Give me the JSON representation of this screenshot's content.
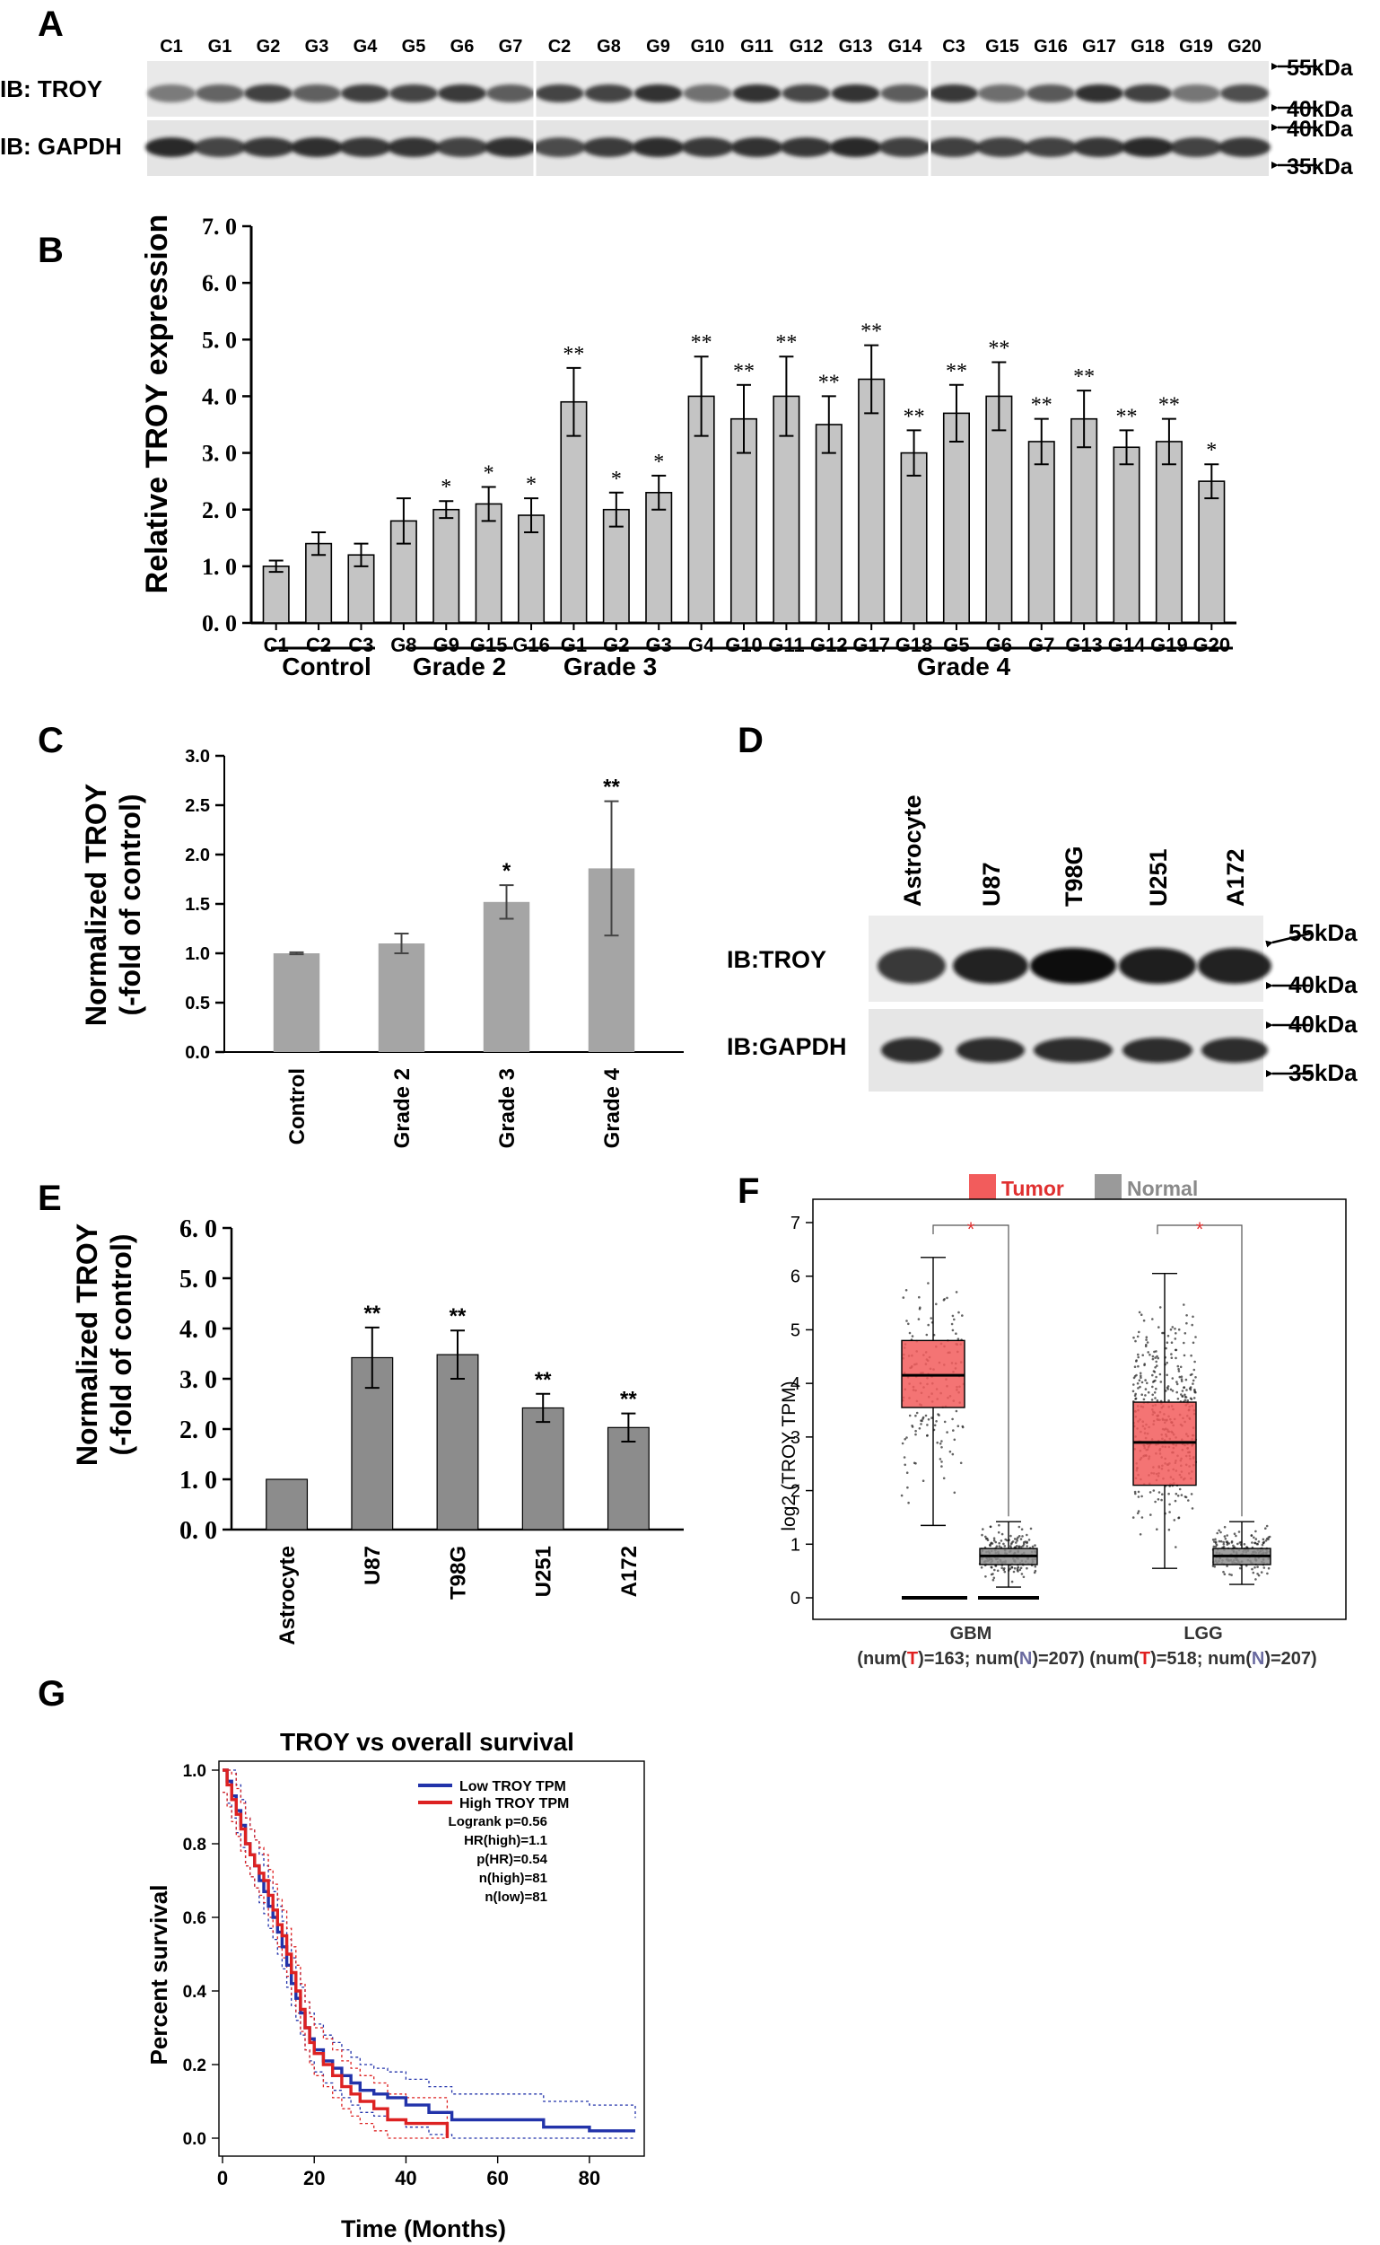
{
  "panel_letters": [
    "A",
    "B",
    "C",
    "D",
    "E",
    "F",
    "G"
  ],
  "panel_a": {
    "lanes": [
      "C1",
      "G1",
      "G2",
      "G3",
      "G4",
      "G5",
      "G6",
      "G7",
      "C2",
      "G8",
      "G9",
      "G10",
      "G11",
      "G12",
      "G13",
      "G14",
      "C3",
      "G15",
      "G16",
      "G17",
      "G18",
      "G19",
      "G20"
    ],
    "row_labels": [
      "IB: TROY",
      "IB: GAPDH"
    ],
    "markers": [
      "55kDa",
      "40kDa",
      "40kDa",
      "35kDa"
    ]
  },
  "panel_b": {
    "ylabel": "Relative TROY expression",
    "ytick_labels": [
      "0. 0",
      "1. 0",
      "2. 0",
      "3. 0",
      "4. 0",
      "5. 0",
      "6. 0",
      "7. 0"
    ],
    "groups": [
      "Control",
      "Grade 2",
      "Grade 3",
      "Grade 4"
    ]
  },
  "panel_c": {
    "ylabel_lines": [
      "Normalized TROY",
      "(-fold of control)"
    ],
    "ytick_labels": [
      "0.0",
      "0.5",
      "1.0",
      "1.5",
      "2.0",
      "2.5",
      "3.0"
    ]
  },
  "panel_d": {
    "lanes": [
      "Astrocyte",
      "U87",
      "T98G",
      "U251",
      "A172"
    ],
    "row_labels": [
      "IB:TROY",
      "IB:GAPDH"
    ],
    "markers": [
      "55kDa",
      "40kDa",
      "40kDa",
      "35kDa"
    ]
  },
  "panel_e": {
    "ylabel_lines": [
      "Normalized TROY",
      "(-fold of control)"
    ],
    "ytick_labels": [
      "0. 0",
      "1. 0",
      "2. 0",
      "3. 0",
      "4. 0",
      "5. 0",
      "6. 0"
    ]
  },
  "panel_f": {
    "ylabel": "log2 (TROY TPM)",
    "legend": [
      "Tumor",
      "Normal"
    ],
    "ytick_labels": [
      "0",
      "1",
      "2",
      "3",
      "4",
      "5",
      "6",
      "7"
    ],
    "groups": [
      {
        "name": "GBM",
        "count_parts": [
          "(num(",
          "T",
          ")=163; num(",
          "N",
          ")=207)"
        ]
      },
      {
        "name": "LGG",
        "count_parts": [
          "(num(",
          "T",
          ")=518; num(",
          "N",
          ")=207)"
        ]
      }
    ],
    "sig_mark": "*"
  },
  "panel_g": {
    "title": "TROY vs overall survival",
    "xlabel": "Time (Months)",
    "ylabel": "Percent survival",
    "xtick_labels": [
      "0",
      "20",
      "40",
      "60",
      "80"
    ],
    "ytick_labels": [
      "0.0",
      "0.2",
      "0.4",
      "0.6",
      "0.8",
      "1.0"
    ],
    "legend": [
      "Low TROY TPM",
      "High TROY TPM"
    ],
    "stats": [
      "Logrank p=0.56",
      "HR(high)=1.1",
      "p(HR)=0.54",
      "n(high)=81",
      "n(low)=81"
    ]
  },
  "chart_data": [
    {
      "id": "B",
      "type": "bar",
      "ylabel": "Relative TROY expression",
      "ylim": [
        0,
        7
      ],
      "categories": [
        "C1",
        "C2",
        "C3",
        "G8",
        "G9",
        "G15",
        "G16",
        "G1",
        "G2",
        "G3",
        "G4",
        "G10",
        "G11",
        "G12",
        "G17",
        "G18",
        "G5",
        "G6",
        "G7",
        "G13",
        "G14",
        "G19",
        "G20"
      ],
      "values": [
        1.0,
        1.4,
        1.2,
        1.8,
        2.0,
        2.1,
        1.9,
        3.9,
        2.0,
        2.3,
        4.0,
        3.6,
        4.0,
        3.5,
        4.3,
        3.0,
        3.7,
        4.0,
        3.2,
        3.6,
        3.1,
        3.2,
        2.5
      ],
      "errors": [
        0.1,
        0.2,
        0.2,
        0.4,
        0.15,
        0.3,
        0.3,
        0.6,
        0.3,
        0.3,
        0.7,
        0.6,
        0.7,
        0.5,
        0.6,
        0.4,
        0.5,
        0.6,
        0.4,
        0.5,
        0.3,
        0.4,
        0.3
      ],
      "significance": [
        "",
        "",
        "",
        "",
        "*",
        "*",
        "*",
        "**",
        "*",
        "*",
        "**",
        "**",
        "**",
        "**",
        "**",
        "**",
        "**",
        "**",
        "**",
        "**",
        "**",
        "**",
        "*"
      ]
    },
    {
      "id": "C",
      "type": "bar",
      "ylabel": "Normalized TROY (-fold of control)",
      "ylim": [
        0,
        3
      ],
      "categories": [
        "Control",
        "Grade 2",
        "Grade 3",
        "Grade 4"
      ],
      "values": [
        1.0,
        1.1,
        1.52,
        1.86
      ],
      "errors": [
        0.01,
        0.1,
        0.17,
        0.68
      ],
      "significance": [
        "",
        "",
        "*",
        "**"
      ]
    },
    {
      "id": "E",
      "type": "bar",
      "ylabel": "Normalized TROY (-fold of control)",
      "ylim": [
        0,
        6
      ],
      "categories": [
        "Astrocyte",
        "U87",
        "T98G",
        "U251",
        "A172"
      ],
      "values": [
        1.0,
        3.42,
        3.48,
        2.42,
        2.03
      ],
      "errors": [
        0.0,
        0.6,
        0.48,
        0.28,
        0.28
      ],
      "significance": [
        "",
        "**",
        "**",
        "**",
        "**"
      ]
    },
    {
      "id": "F",
      "type": "box",
      "ylabel": "log2 (TROY TPM)",
      "ylim": [
        0,
        7
      ],
      "categories": [
        "GBM",
        "LGG"
      ],
      "series": [
        {
          "name": "Tumor",
          "color": "#f25c5c",
          "stats": [
            {
              "min": 1.35,
              "q1": 3.55,
              "median": 4.15,
              "q3": 4.8,
              "max": 6.35
            },
            {
              "min": 0.55,
              "q1": 2.1,
              "median": 2.9,
              "q3": 3.65,
              "max": 6.05
            }
          ]
        },
        {
          "name": "Normal",
          "color": "#8e8e8e",
          "stats": [
            {
              "min": 0.2,
              "q1": 0.62,
              "median": 0.78,
              "q3": 0.92,
              "max": 1.42
            },
            {
              "min": 0.25,
              "q1": 0.62,
              "median": 0.78,
              "q3": 0.92,
              "max": 1.42
            }
          ]
        }
      ]
    },
    {
      "id": "G",
      "type": "line",
      "title": "TROY vs overall survival",
      "xlabel": "Time (Months)",
      "ylabel": "Percent survival",
      "xlim": [
        0,
        90
      ],
      "ylim": [
        0,
        1.0
      ],
      "series": [
        {
          "name": "Low TROY TPM",
          "color": "#2233aa",
          "x": [
            0,
            1,
            2,
            3,
            4,
            5,
            6,
            7,
            8,
            9,
            10,
            11,
            12,
            13,
            14,
            15,
            16,
            17,
            18,
            19,
            20,
            22,
            24,
            26,
            28,
            30,
            33,
            36,
            40,
            45,
            50,
            55,
            60,
            70,
            80,
            90
          ],
          "y": [
            1.0,
            0.97,
            0.93,
            0.89,
            0.85,
            0.8,
            0.77,
            0.74,
            0.7,
            0.67,
            0.63,
            0.6,
            0.56,
            0.52,
            0.47,
            0.42,
            0.38,
            0.34,
            0.3,
            0.27,
            0.24,
            0.21,
            0.19,
            0.17,
            0.15,
            0.13,
            0.12,
            0.11,
            0.09,
            0.07,
            0.05,
            0.05,
            0.05,
            0.03,
            0.02,
            0.02
          ]
        },
        {
          "name": "High TROY TPM",
          "color": "#dd2222",
          "x": [
            0,
            1,
            2,
            3,
            4,
            5,
            6,
            7,
            8,
            9,
            10,
            11,
            12,
            13,
            14,
            15,
            16,
            17,
            18,
            19,
            20,
            22,
            24,
            26,
            28,
            30,
            33,
            36,
            40,
            45,
            49
          ],
          "y": [
            1.0,
            0.96,
            0.92,
            0.88,
            0.84,
            0.8,
            0.77,
            0.74,
            0.72,
            0.7,
            0.66,
            0.62,
            0.58,
            0.55,
            0.5,
            0.45,
            0.4,
            0.35,
            0.3,
            0.26,
            0.23,
            0.2,
            0.17,
            0.14,
            0.12,
            0.1,
            0.08,
            0.05,
            0.04,
            0.04,
            0.0
          ]
        }
      ]
    }
  ]
}
